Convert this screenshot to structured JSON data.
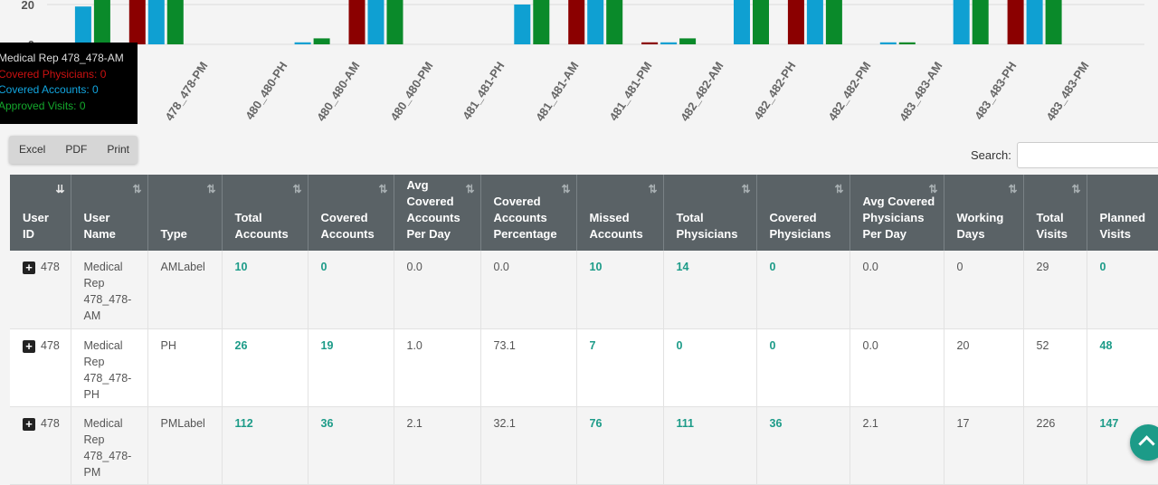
{
  "chart_data": {
    "type": "bar",
    "y_tick_labels": [
      "20",
      "0"
    ],
    "categories": [
      "478_478-AM",
      "478_478-PH",
      "478_478-PM",
      "480_480-AM",
      "480_480-PH",
      "480_480-PM",
      "481_481-AM",
      "481_481-PH",
      "481_481-PM",
      "482_482-AM",
      "482_482-PH",
      "482_482-PM",
      "483_483-AM",
      "483_483-PH",
      "483_483-PM"
    ],
    "visible_category_labels": [
      "478_478-PH",
      "478_478-PM",
      "480_480-PH",
      "480_480-AM",
      "480_480-PM",
      "481_481-PH",
      "481_481-AM",
      "481_481-PM",
      "482_482-AM",
      "482_482-PH",
      "482_482-PM",
      "483_483-AM",
      "483_483-PH",
      "483_483-PM"
    ],
    "series": [
      {
        "name": "Covered Physicians",
        "color": "#8b0000",
        "values": [
          0,
          0,
          36,
          0,
          0,
          36,
          0,
          0,
          36,
          1,
          0,
          36,
          0,
          0,
          36
        ]
      },
      {
        "name": "Covered Accounts",
        "color": "#0fa0d2",
        "values": [
          0,
          19,
          36,
          0,
          1,
          36,
          0,
          20,
          36,
          1,
          36,
          36,
          1,
          36,
          36
        ]
      },
      {
        "name": "Approved Visits",
        "color": "#0a8a2a",
        "values": [
          0,
          36,
          36,
          0,
          3,
          36,
          0,
          36,
          36,
          3,
          36,
          36,
          1,
          36,
          36
        ]
      }
    ]
  },
  "tooltip": {
    "title": "Medical Rep 478_478-AM",
    "lines": [
      {
        "text": "Covered Physicians: 0",
        "color": "#cc1111"
      },
      {
        "text": "Covered Accounts: 0",
        "color": "#12a6e0"
      },
      {
        "text": "Approved Visits: 0",
        "color": "#14a82c"
      }
    ]
  },
  "export_buttons": [
    "Excel",
    "PDF",
    "Print"
  ],
  "search": {
    "label": "Search:",
    "value": ""
  },
  "table": {
    "columns": [
      {
        "label": "User ID",
        "width": 67
      },
      {
        "label": "User Name",
        "width": 85
      },
      {
        "label": "Type",
        "width": 82
      },
      {
        "label": "Total Accounts",
        "width": 95
      },
      {
        "label": "Covered Accounts",
        "width": 95
      },
      {
        "label": "Avg Covered Accounts Per Day",
        "width": 96
      },
      {
        "label": "Covered Accounts Percentage",
        "width": 106
      },
      {
        "label": "Missed Accounts",
        "width": 96
      },
      {
        "label": "Total Physicians",
        "width": 103
      },
      {
        "label": "Covered Physicians",
        "width": 103
      },
      {
        "label": "Avg Covered Physicians Per Day",
        "width": 104
      },
      {
        "label": "Working Days",
        "width": 88
      },
      {
        "label": "Total Visits",
        "width": 70
      },
      {
        "label": "Planned Visits",
        "width": 100
      }
    ],
    "rows": [
      [
        "478",
        "Medical Rep 478_478-AM",
        "AMLabel",
        "10",
        "0",
        "0.0",
        "0.0",
        "10",
        "14",
        "0",
        "0.0",
        "0",
        "29",
        "0"
      ],
      [
        "478",
        "Medical Rep 478_478-PH",
        "PH",
        "26",
        "19",
        "1.0",
        "73.1",
        "7",
        "0",
        "0",
        "0.0",
        "20",
        "52",
        "48"
      ],
      [
        "478",
        "Medical Rep 478_478-PM",
        "PMLabel",
        "112",
        "36",
        "2.1",
        "32.1",
        "76",
        "111",
        "36",
        "2.1",
        "17",
        "226",
        "147"
      ]
    ],
    "link_columns": [
      3,
      4,
      7,
      8,
      9,
      13
    ]
  }
}
